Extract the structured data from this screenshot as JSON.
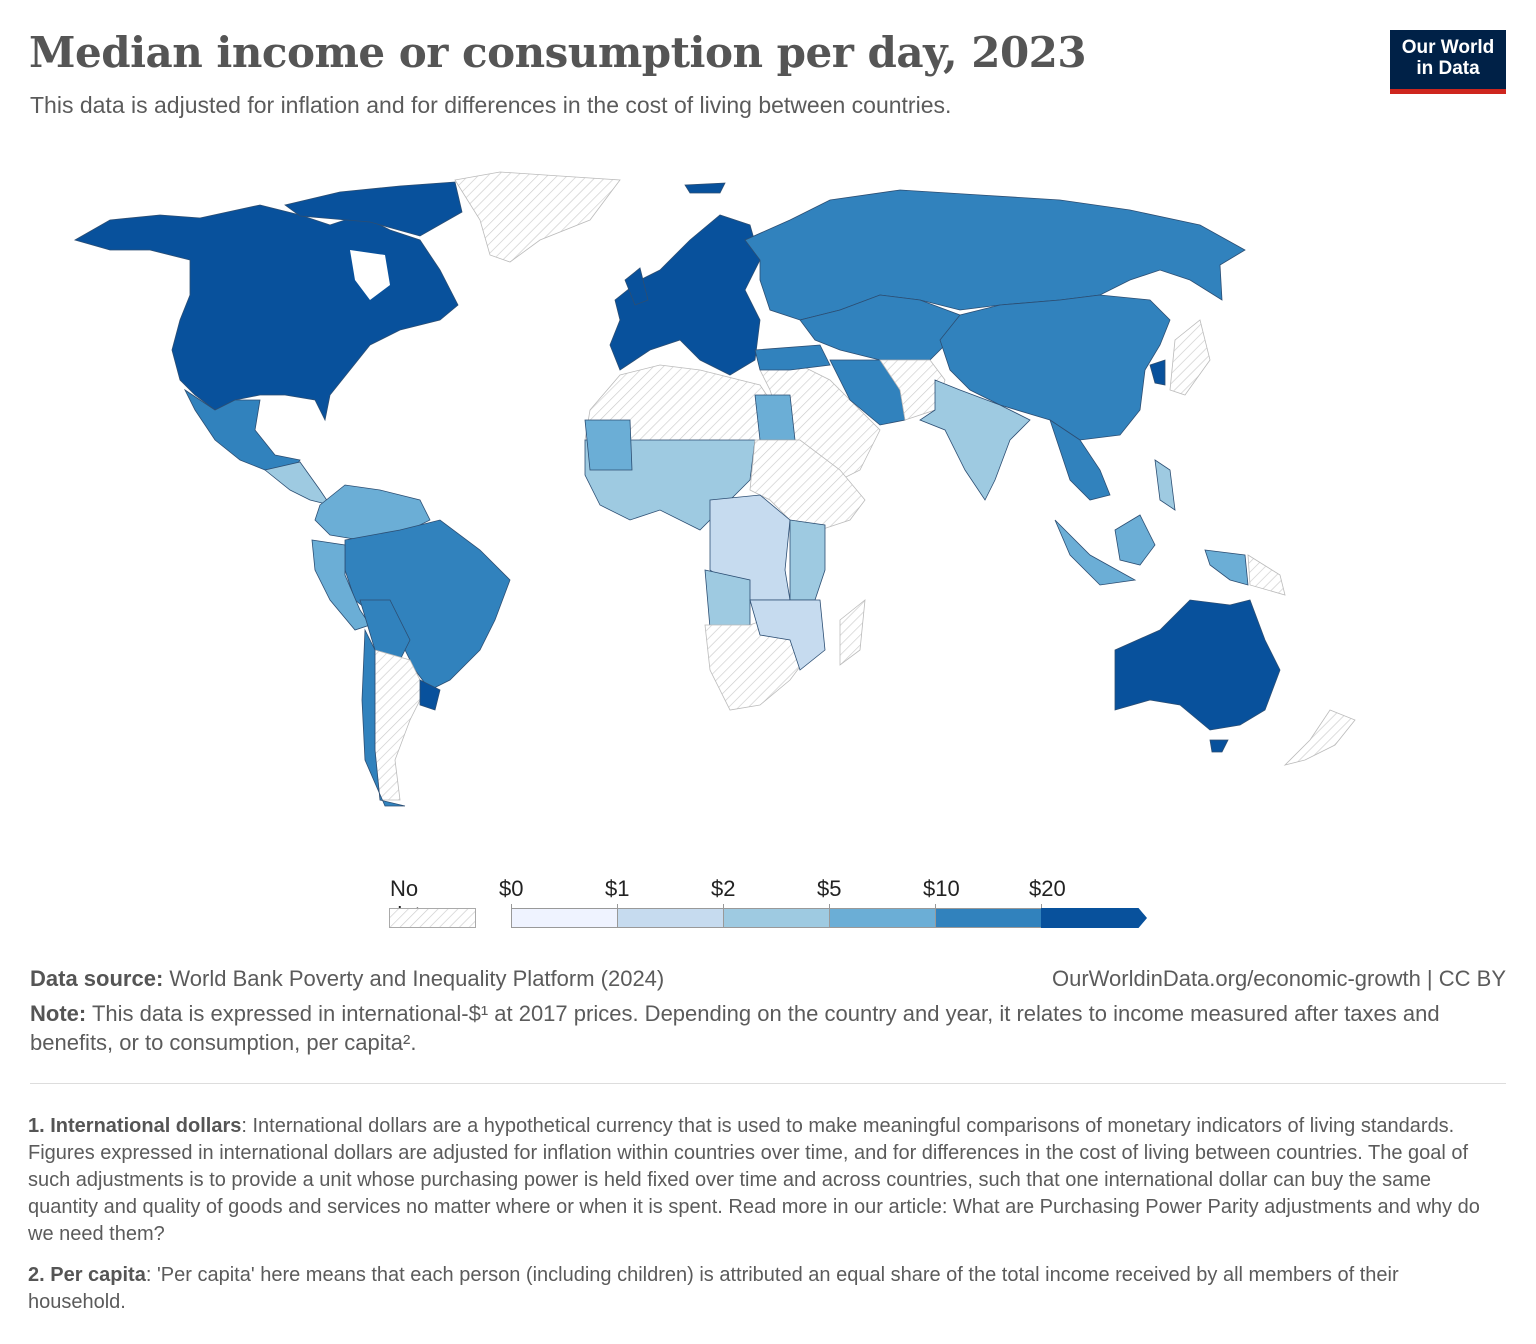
{
  "header": {
    "title": "Median income or consumption per day, 2023",
    "subtitle": "This data is adjusted for inflation and for differences in the cost of living between countries.",
    "logo_line1": "Our World",
    "logo_line2": "in Data"
  },
  "chart_data": {
    "type": "choropleth",
    "legend": {
      "no_data_label": "No data",
      "ticks": [
        "$0",
        "$1",
        "$2",
        "$5",
        "$10",
        "$20"
      ],
      "bin_colors": [
        "#eff3ff",
        "#c6dbef",
        "#9ecae1",
        "#6baed6",
        "#3182bd",
        "#08519c"
      ],
      "no_data_pattern": "hatched-gray",
      "open_ended_last_bin": true
    }
  },
  "footer": {
    "source_label": "Data source:",
    "source": "World Bank Poverty and Inequality Platform (2024)",
    "url": "OurWorldinData.org/economic-growth | CC BY",
    "note_label": "Note:",
    "note": "This data is expressed in international-$¹ at 2017 prices. Depending on the country and year, it relates to income measured after taxes and benefits, or to consumption, per capita².",
    "fn1_label": "1. International dollars",
    "fn1": ": International dollars are a hypothetical currency that is used to make meaningful comparisons of monetary indicators of living standards. Figures expressed in international dollars are adjusted for inflation within countries over time, and for differences in the cost of living between countries. The goal of such adjustments is to provide a unit whose purchasing power is held fixed over time and across countries, such that one international dollar can buy the same quantity and quality of goods and services no matter where or when it is spent. Read more in our article: What are Purchasing Power Parity adjustments and why do we need them?",
    "fn2_label": "2. Per capita",
    "fn2": ": 'Per capita' here means that each person (including children) is attributed an equal share of the total income received by all members of their household."
  }
}
